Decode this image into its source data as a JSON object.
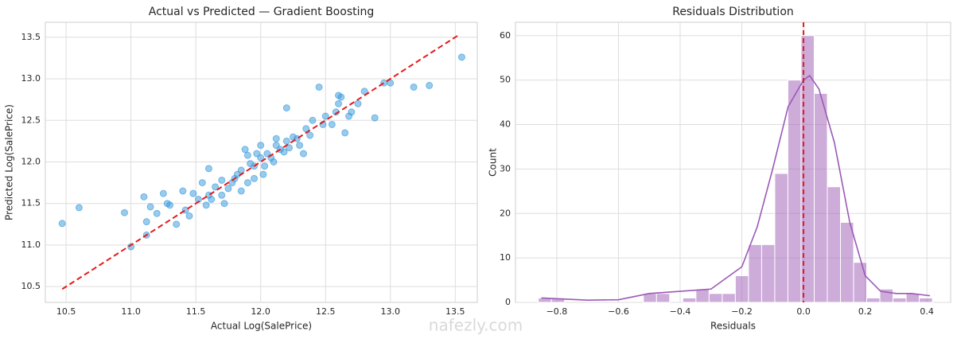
{
  "chart_data": [
    {
      "type": "scatter",
      "title": "Actual vs Predicted — Gradient Boosting",
      "xlabel": "Actual Log(SalePrice)",
      "ylabel": "Predicted Log(SalePrice)",
      "color": "#3498db",
      "grid": true,
      "x": [
        10.47,
        10.6,
        10.95,
        11.0,
        11.1,
        11.12,
        11.15,
        11.12,
        11.2,
        11.25,
        11.28,
        11.3,
        11.35,
        11.4,
        11.42,
        11.45,
        11.48,
        11.55,
        11.6,
        11.62,
        11.7,
        11.75,
        11.8,
        11.85,
        11.88,
        11.9,
        11.95,
        12.0,
        12.02,
        12.05,
        12.1,
        12.12,
        12.15,
        12.2,
        12.25,
        12.3,
        12.35,
        12.4,
        12.45,
        12.5,
        12.55,
        12.6,
        12.65,
        12.7,
        12.75,
        12.8,
        12.88,
        12.95,
        13.0,
        13.18,
        13.3,
        13.55,
        12.2,
        12.08,
        11.65,
        11.7,
        11.78,
        11.82,
        11.92,
        11.97,
        12.03,
        12.18,
        12.22,
        12.28,
        12.38,
        12.48,
        12.58,
        12.68,
        11.85,
        11.6,
        11.72,
        11.9,
        12.12,
        12.33,
        12.6,
        12.62,
        11.52,
        11.58,
        12.0,
        11.95
      ],
      "y": [
        11.26,
        11.45,
        11.39,
        10.98,
        11.58,
        11.28,
        11.46,
        11.12,
        11.38,
        11.62,
        11.5,
        11.48,
        11.25,
        11.65,
        11.42,
        11.35,
        11.62,
        11.75,
        11.92,
        11.55,
        11.6,
        11.68,
        11.8,
        11.9,
        12.15,
        11.75,
        11.95,
        12.05,
        11.85,
        12.1,
        12.0,
        12.2,
        12.15,
        12.25,
        12.3,
        12.2,
        12.4,
        12.5,
        12.9,
        12.55,
        12.45,
        12.7,
        12.35,
        12.6,
        12.7,
        12.85,
        12.53,
        12.95,
        12.95,
        12.9,
        12.92,
        13.26,
        12.65,
        12.05,
        11.7,
        11.78,
        11.75,
        11.85,
        11.98,
        12.1,
        11.95,
        12.12,
        12.17,
        12.28,
        12.32,
        12.45,
        12.6,
        12.55,
        11.65,
        11.6,
        11.5,
        12.08,
        12.28,
        12.1,
        12.8,
        12.78,
        11.55,
        11.48,
        12.2,
        11.8
      ],
      "ref_line": [
        10.47,
        13.53
      ],
      "ref_color": "#e31a1c",
      "xlim": [
        10.34,
        13.67
      ],
      "ylim": [
        10.31,
        13.68
      ],
      "xticks": [
        10.5,
        {
          "value": 11,
          "label": "11.0"
        },
        11.5,
        {
          "value": 12,
          "label": "12.0"
        },
        12.5,
        {
          "value": 13,
          "label": "13.0"
        },
        13.5
      ],
      "yticks": [
        10.5,
        {
          "value": 11,
          "label": "11.0"
        },
        11.5,
        {
          "value": 12,
          "label": "12.0"
        },
        12.5,
        {
          "value": 13,
          "label": "13.0"
        },
        13.5
      ]
    },
    {
      "type": "histogram",
      "title": "Residuals Distribution",
      "xlabel": "Residuals",
      "ylabel": "Count",
      "color": "#9b59b6",
      "grid": true,
      "bins": [
        -0.86,
        -0.8174,
        -0.7748,
        -0.7322,
        -0.6896,
        -0.647,
        -0.6044,
        -0.5618,
        -0.5192,
        -0.4766,
        -0.434,
        -0.3914,
        -0.3488,
        -0.3062,
        -0.2636,
        -0.221,
        -0.1784,
        -0.1358,
        -0.0932,
        -0.0506,
        -0.008,
        0.0346,
        0.0772,
        0.1198,
        0.1624,
        0.205,
        0.2476,
        0.2902,
        0.3328,
        0.3754,
        0.418
      ],
      "values": [
        1,
        1,
        0,
        0,
        0,
        0,
        0,
        0,
        2,
        2,
        0,
        1,
        3,
        2,
        2,
        6,
        13,
        13,
        29,
        50,
        60,
        47,
        26,
        18,
        9,
        1,
        3,
        1,
        2,
        1
      ],
      "kde": {
        "x": [
          -0.85,
          -0.7,
          -0.6,
          -0.5,
          -0.4,
          -0.3,
          -0.2,
          -0.15,
          -0.1,
          -0.05,
          0,
          0.02,
          0.05,
          0.1,
          0.15,
          0.2,
          0.25,
          0.3,
          0.35,
          0.41
        ],
        "y": [
          1,
          0.5,
          0.6,
          2,
          2.5,
          3,
          8,
          17,
          30,
          44,
          50,
          51,
          48,
          36,
          18,
          6,
          2.5,
          2,
          2,
          1.5
        ]
      },
      "vline": 0,
      "vline_color": "#e31a1c",
      "xlim": [
        -0.934,
        0.477
      ],
      "ylim": [
        0,
        63
      ],
      "xticks": [
        {
          "value": -0.8,
          "label": "−0.8"
        },
        {
          "value": -0.6,
          "label": "−0.6"
        },
        {
          "value": -0.4,
          "label": "−0.4"
        },
        {
          "value": -0.2,
          "label": "−0.2"
        },
        {
          "value": 0,
          "label": "0.0"
        },
        0.2,
        0.4
      ],
      "yticks": [
        0,
        10,
        20,
        30,
        40,
        50,
        60
      ]
    }
  ],
  "watermark": "nafezly.com"
}
